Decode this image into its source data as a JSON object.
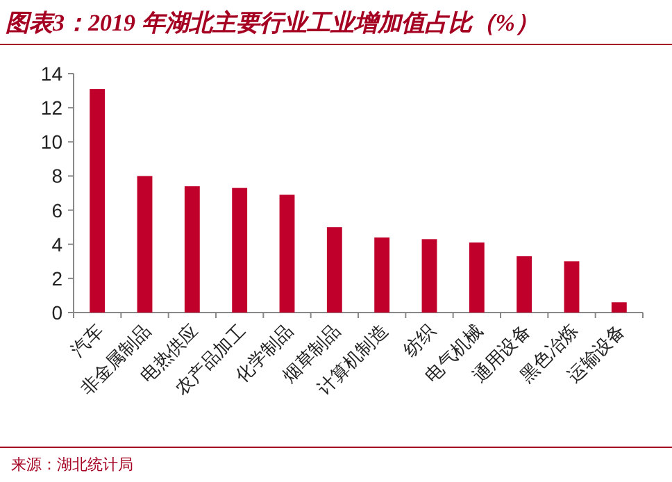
{
  "chart_data": {
    "type": "bar",
    "title": "图表3：2019 年湖北主要行业工业增加值占比（%）",
    "categories": [
      "汽车",
      "非金属制品",
      "电热供应",
      "农产品加工",
      "化学制品",
      "烟草制品",
      "计算机制造",
      "纺织",
      "电气机械",
      "通用设备",
      "黑色冶炼",
      "运输设备"
    ],
    "values": [
      13.1,
      8.0,
      7.4,
      7.3,
      6.9,
      5.0,
      4.4,
      4.3,
      4.1,
      3.3,
      3.0,
      0.6
    ],
    "color": "#c0002a",
    "ylim": [
      0,
      14
    ],
    "yticks": [
      0,
      2,
      4,
      6,
      8,
      10,
      12,
      14
    ],
    "annotations": [
      "来源：湖北统计局"
    ]
  }
}
